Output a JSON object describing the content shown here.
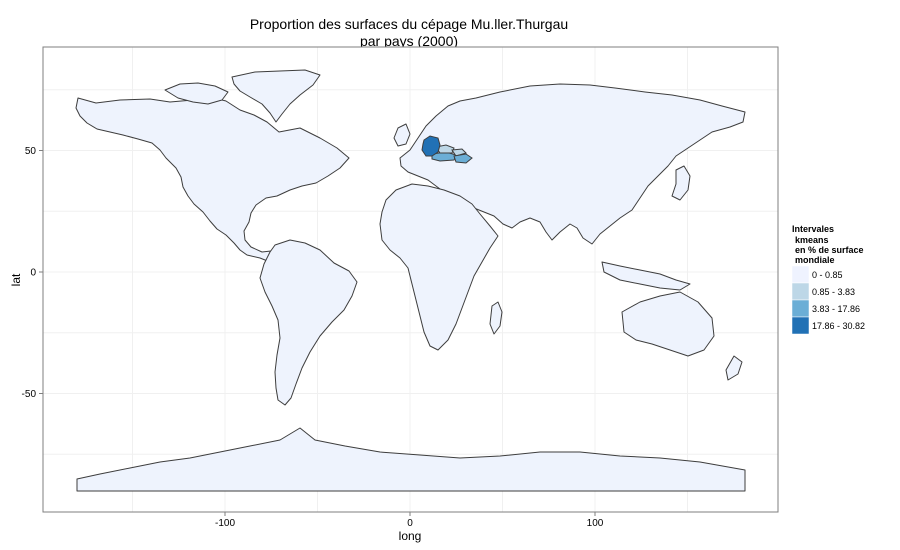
{
  "title": [
    "Proportion des surfaces du cépage Mu.ller.Thurgau",
    "par pays (2000)"
  ],
  "axes": {
    "x_label": "long",
    "y_label": "lat",
    "x_ticks": [
      {
        "value": -100,
        "label": "-100"
      },
      {
        "value": 0,
        "label": "0"
      },
      {
        "value": 100,
        "label": "100"
      }
    ],
    "y_ticks": [
      {
        "value": 50,
        "label": "50"
      },
      {
        "value": 0,
        "label": "0"
      },
      {
        "value": -50,
        "label": "-50"
      }
    ]
  },
  "legend": {
    "title": [
      "Intervales",
      "kmeans",
      "en % de surface",
      "mondiale"
    ],
    "items": [
      {
        "label": "0 - 0.85",
        "color": "#eff3ff"
      },
      {
        "label": "0.85 - 3.83",
        "color": "#bdd7e7"
      },
      {
        "label": "3.83 - 17.86",
        "color": "#6baed6"
      },
      {
        "label": "17.86 - 30.82",
        "color": "#2171b5"
      }
    ]
  },
  "highlighted_countries": [
    {
      "name": "Germany",
      "color": "#2171b5"
    },
    {
      "name": "Austria",
      "color": "#6baed6"
    },
    {
      "name": "Czech Republic",
      "color": "#bdd7e7"
    },
    {
      "name": "Hungary",
      "color": "#6baed6"
    },
    {
      "name": "Slovakia",
      "color": "#bdd7e7"
    }
  ],
  "colors": {
    "land": "#eef3fd",
    "border": "#3d3d3d",
    "panel_border": "#7f7f7f"
  }
}
